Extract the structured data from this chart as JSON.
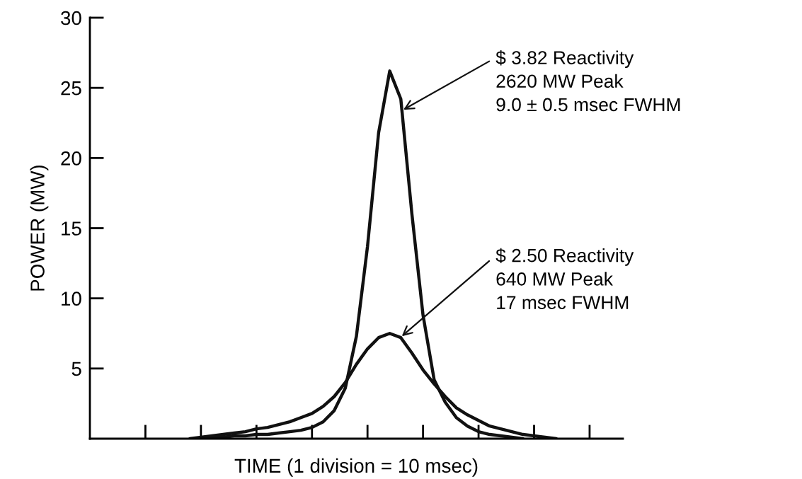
{
  "chart_data": {
    "type": "line",
    "xlabel": "TIME (1 division = 10 msec)",
    "ylabel": "POWER (MW)",
    "categories": [
      null,
      null,
      null,
      null,
      null,
      null,
      null,
      null,
      null,
      null,
      null,
      null,
      null,
      null,
      null,
      null,
      null,
      null,
      null,
      null,
      null,
      null,
      null,
      null,
      null,
      null,
      null,
      null,
      null,
      null,
      null,
      null,
      null,
      null,
      null,
      null,
      null,
      null,
      null,
      null,
      null,
      null,
      null,
      null,
      null,
      null,
      null,
      null,
      null
    ],
    "ylim": [
      0,
      30
    ],
    "yticks": [
      5,
      10,
      15,
      20,
      25,
      30
    ],
    "tick_labels": "y",
    "grid": false,
    "marker": "none",
    "line_style": "solid",
    "series": [
      {
        "color": "#111111",
        "values": [
          null,
          null,
          null,
          null,
          null,
          null,
          null,
          null,
          null,
          null,
          0,
          0.1,
          0.1,
          0.2,
          0.2,
          0.3,
          0.3,
          0.4,
          0.5,
          0.6,
          0.8,
          1.2,
          2.0,
          3.6,
          7.3,
          13.7,
          21.8,
          26.2,
          24.2,
          16.0,
          8.8,
          4.2,
          2.6,
          1.5,
          0.9,
          0.5,
          0.3,
          0.2,
          0.1,
          0,
          null,
          null,
          null,
          null,
          null,
          null,
          null,
          null,
          null
        ]
      },
      {
        "color": "#111111",
        "values": [
          null,
          null,
          null,
          null,
          null,
          null,
          null,
          null,
          null,
          0,
          0.1,
          0.2,
          0.3,
          0.4,
          0.5,
          0.7,
          0.8,
          1.0,
          1.2,
          1.5,
          1.8,
          2.3,
          3.0,
          4.0,
          5.3,
          6.4,
          7.2,
          7.5,
          7.2,
          6.1,
          4.9,
          3.9,
          3.0,
          2.2,
          1.7,
          1.3,
          0.9,
          0.7,
          0.5,
          0.3,
          0.2,
          0.1,
          0,
          null,
          null,
          null,
          null,
          null,
          null
        ]
      }
    ],
    "annotations": [
      "$ 3.82 Reactivity\n2620 MW Peak\n9.0 ± 0.5 msec FWHM",
      "$ 2.50 Reactivity\n640 MW Peak\n17 msec FWHM"
    ]
  }
}
